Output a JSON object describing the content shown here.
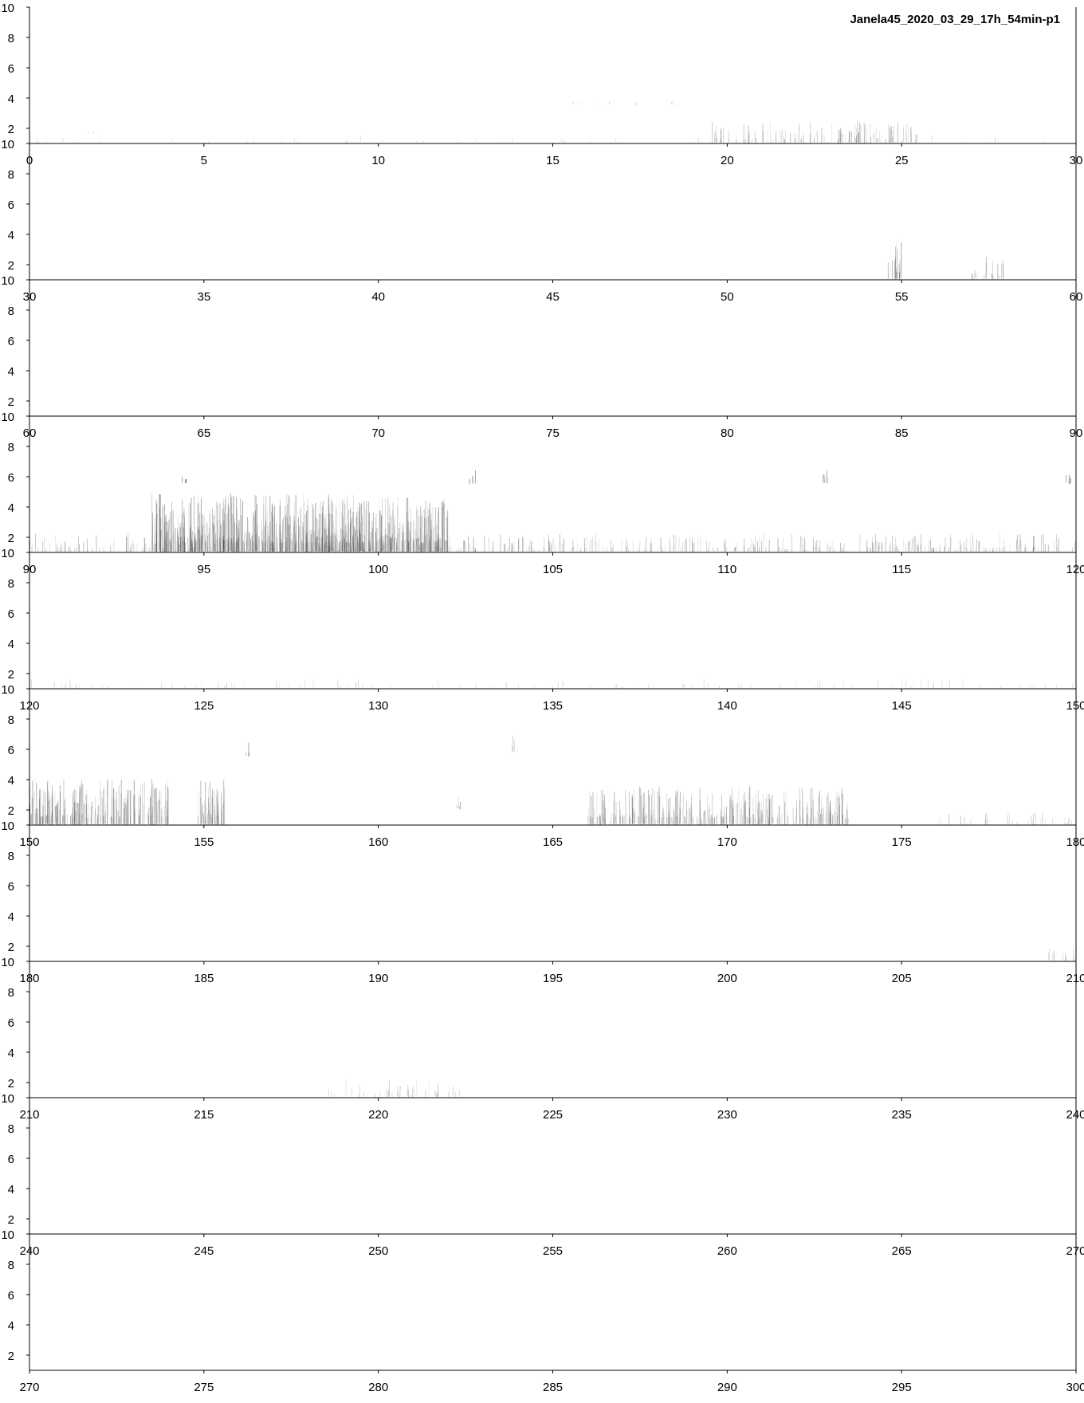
{
  "title": "Janela45_2020_03_29_17h_54min-p1",
  "chart_data": [
    {
      "type": "heatmap",
      "xlim": [
        0,
        30
      ],
      "ylim": [
        1,
        10
      ],
      "xticks": [
        "0",
        "5",
        "10",
        "15",
        "20",
        "25",
        "30"
      ],
      "yticks": [
        "2",
        "4",
        "6",
        "8",
        "10"
      ],
      "events": [
        {
          "t0": 0.2,
          "t1": 30,
          "f0": 1,
          "f1": 1.4,
          "intensity": 0.12
        },
        {
          "t0": 19.5,
          "t1": 25.5,
          "f0": 1,
          "f1": 2.4,
          "intensity": 0.38
        },
        {
          "t0": 1.5,
          "t1": 2.0,
          "f0": 1.6,
          "f1": 2.0,
          "intensity": 0.4
        },
        {
          "t0": 15.2,
          "t1": 18.7,
          "f0": 3.5,
          "f1": 3.8,
          "intensity": 0.3
        }
      ]
    },
    {
      "type": "heatmap",
      "xlim": [
        30,
        60
      ],
      "ylim": [
        1,
        10
      ],
      "xticks": [
        "30",
        "35",
        "40",
        "45",
        "50",
        "55",
        "60"
      ],
      "yticks": [
        "2",
        "4",
        "6",
        "8",
        "10"
      ],
      "events": [
        {
          "t0": 54.6,
          "t1": 55.0,
          "f0": 1,
          "f1": 3.8,
          "intensity": 0.55
        },
        {
          "t0": 57.0,
          "t1": 58.0,
          "f0": 1,
          "f1": 2.5,
          "intensity": 0.4
        }
      ]
    },
    {
      "type": "heatmap",
      "xlim": [
        60,
        90
      ],
      "ylim": [
        1,
        10
      ],
      "xticks": [
        "60",
        "65",
        "70",
        "75",
        "80",
        "85",
        "90"
      ],
      "yticks": [
        "2",
        "4",
        "6",
        "8",
        "10"
      ],
      "events": []
    },
    {
      "type": "heatmap",
      "xlim": [
        90,
        120
      ],
      "ylim": [
        1,
        10
      ],
      "xticks": [
        "90",
        "95",
        "100",
        "105",
        "110",
        "115",
        "120"
      ],
      "yticks": [
        "2",
        "4",
        "6",
        "8",
        "10"
      ],
      "events": [
        {
          "t0": 90,
          "t1": 120,
          "f0": 1,
          "f1": 2.2,
          "intensity": 0.4
        },
        {
          "t0": 93.5,
          "t1": 102,
          "f0": 1,
          "f1": 4.8,
          "intensity": 0.55
        },
        {
          "t0": 94.3,
          "t1": 94.5,
          "f0": 5.5,
          "f1": 6.6,
          "intensity": 0.7
        },
        {
          "t0": 102.6,
          "t1": 102.8,
          "f0": 5.5,
          "f1": 6.6,
          "intensity": 0.7
        },
        {
          "t0": 112.7,
          "t1": 112.9,
          "f0": 5.5,
          "f1": 6.6,
          "intensity": 0.7
        },
        {
          "t0": 119.7,
          "t1": 119.9,
          "f0": 5.5,
          "f1": 6.6,
          "intensity": 0.7
        }
      ]
    },
    {
      "type": "heatmap",
      "xlim": [
        120,
        150
      ],
      "ylim": [
        1,
        10
      ],
      "xticks": [
        "120",
        "125",
        "130",
        "135",
        "140",
        "145",
        "150"
      ],
      "yticks": [
        "2",
        "4",
        "6",
        "8",
        "10"
      ],
      "events": [
        {
          "t0": 120,
          "t1": 150,
          "f0": 1,
          "f1": 1.6,
          "intensity": 0.18
        }
      ]
    },
    {
      "type": "heatmap",
      "xlim": [
        150,
        180
      ],
      "ylim": [
        1,
        10
      ],
      "xticks": [
        "150",
        "155",
        "160",
        "165",
        "170",
        "175",
        "180"
      ],
      "yticks": [
        "2",
        "4",
        "6",
        "8",
        "10"
      ],
      "events": [
        {
          "t0": 150,
          "t1": 154,
          "f0": 1,
          "f1": 4.0,
          "intensity": 0.5
        },
        {
          "t0": 154.8,
          "t1": 155.6,
          "f0": 1,
          "f1": 4.0,
          "intensity": 0.5
        },
        {
          "t0": 156.2,
          "t1": 156.4,
          "f0": 5.5,
          "f1": 6.5,
          "intensity": 0.6
        },
        {
          "t0": 163.8,
          "t1": 164.0,
          "f0": 5.8,
          "f1": 6.9,
          "intensity": 0.6
        },
        {
          "t0": 166.0,
          "t1": 173.5,
          "f0": 1,
          "f1": 3.5,
          "intensity": 0.45
        },
        {
          "t0": 162.2,
          "t1": 162.4,
          "f0": 2.0,
          "f1": 2.8,
          "intensity": 0.5
        },
        {
          "t0": 176.0,
          "t1": 180,
          "f0": 1,
          "f1": 1.8,
          "intensity": 0.3
        }
      ]
    },
    {
      "type": "heatmap",
      "xlim": [
        180,
        210
      ],
      "ylim": [
        1,
        10
      ],
      "xticks": [
        "180",
        "185",
        "190",
        "195",
        "200",
        "205",
        "210"
      ],
      "yticks": [
        "2",
        "4",
        "6",
        "8",
        "10"
      ],
      "events": [
        {
          "t0": 209.2,
          "t1": 210,
          "f0": 1,
          "f1": 2.0,
          "intensity": 0.35
        }
      ]
    },
    {
      "type": "heatmap",
      "xlim": [
        210,
        240
      ],
      "ylim": [
        1,
        10
      ],
      "xticks": [
        "210",
        "215",
        "220",
        "225",
        "230",
        "235",
        "240"
      ],
      "yticks": [
        "2",
        "4",
        "6",
        "8",
        "10"
      ],
      "events": [
        {
          "t0": 218.5,
          "t1": 222.5,
          "f0": 1,
          "f1": 2.2,
          "intensity": 0.25
        }
      ]
    },
    {
      "type": "heatmap",
      "xlim": [
        240,
        270
      ],
      "ylim": [
        1,
        10
      ],
      "xticks": [
        "240",
        "245",
        "250",
        "255",
        "260",
        "265",
        "270"
      ],
      "yticks": [
        "2",
        "4",
        "6",
        "8",
        "10"
      ],
      "events": []
    },
    {
      "type": "heatmap",
      "xlim": [
        270,
        300
      ],
      "ylim": [
        1,
        10
      ],
      "xticks": [
        "270",
        "275",
        "280",
        "285",
        "290",
        "295",
        "300"
      ],
      "yticks": [
        "2",
        "4",
        "6",
        "8",
        "10"
      ],
      "events": []
    }
  ]
}
